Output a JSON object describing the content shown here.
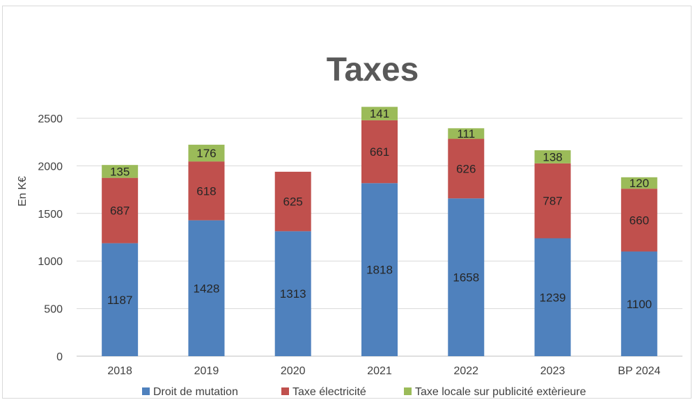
{
  "chart_data": {
    "type": "bar",
    "stacked": true,
    "title": "Taxes",
    "xlabel": "",
    "ylabel": "En K€",
    "ylim": [
      0,
      2500
    ],
    "yticks": [
      0,
      500,
      1000,
      1500,
      2000,
      2500
    ],
    "categories": [
      "2018",
      "2019",
      "2020",
      "2021",
      "2022",
      "2023",
      "BP 2024"
    ],
    "series": [
      {
        "name": "Droit de mutation",
        "color": "#4f81bd",
        "values": [
          1187,
          1428,
          1313,
          1818,
          1658,
          1239,
          1100
        ]
      },
      {
        "name": "Taxe électricité",
        "color": "#c0504d",
        "values": [
          687,
          618,
          625,
          661,
          626,
          787,
          660
        ]
      },
      {
        "name": "Taxe locale sur publicité extèrieure",
        "color": "#9bbb59",
        "values": [
          135,
          176,
          null,
          141,
          111,
          138,
          120
        ]
      }
    ],
    "grid": "horizontal",
    "legend": "bottom"
  }
}
